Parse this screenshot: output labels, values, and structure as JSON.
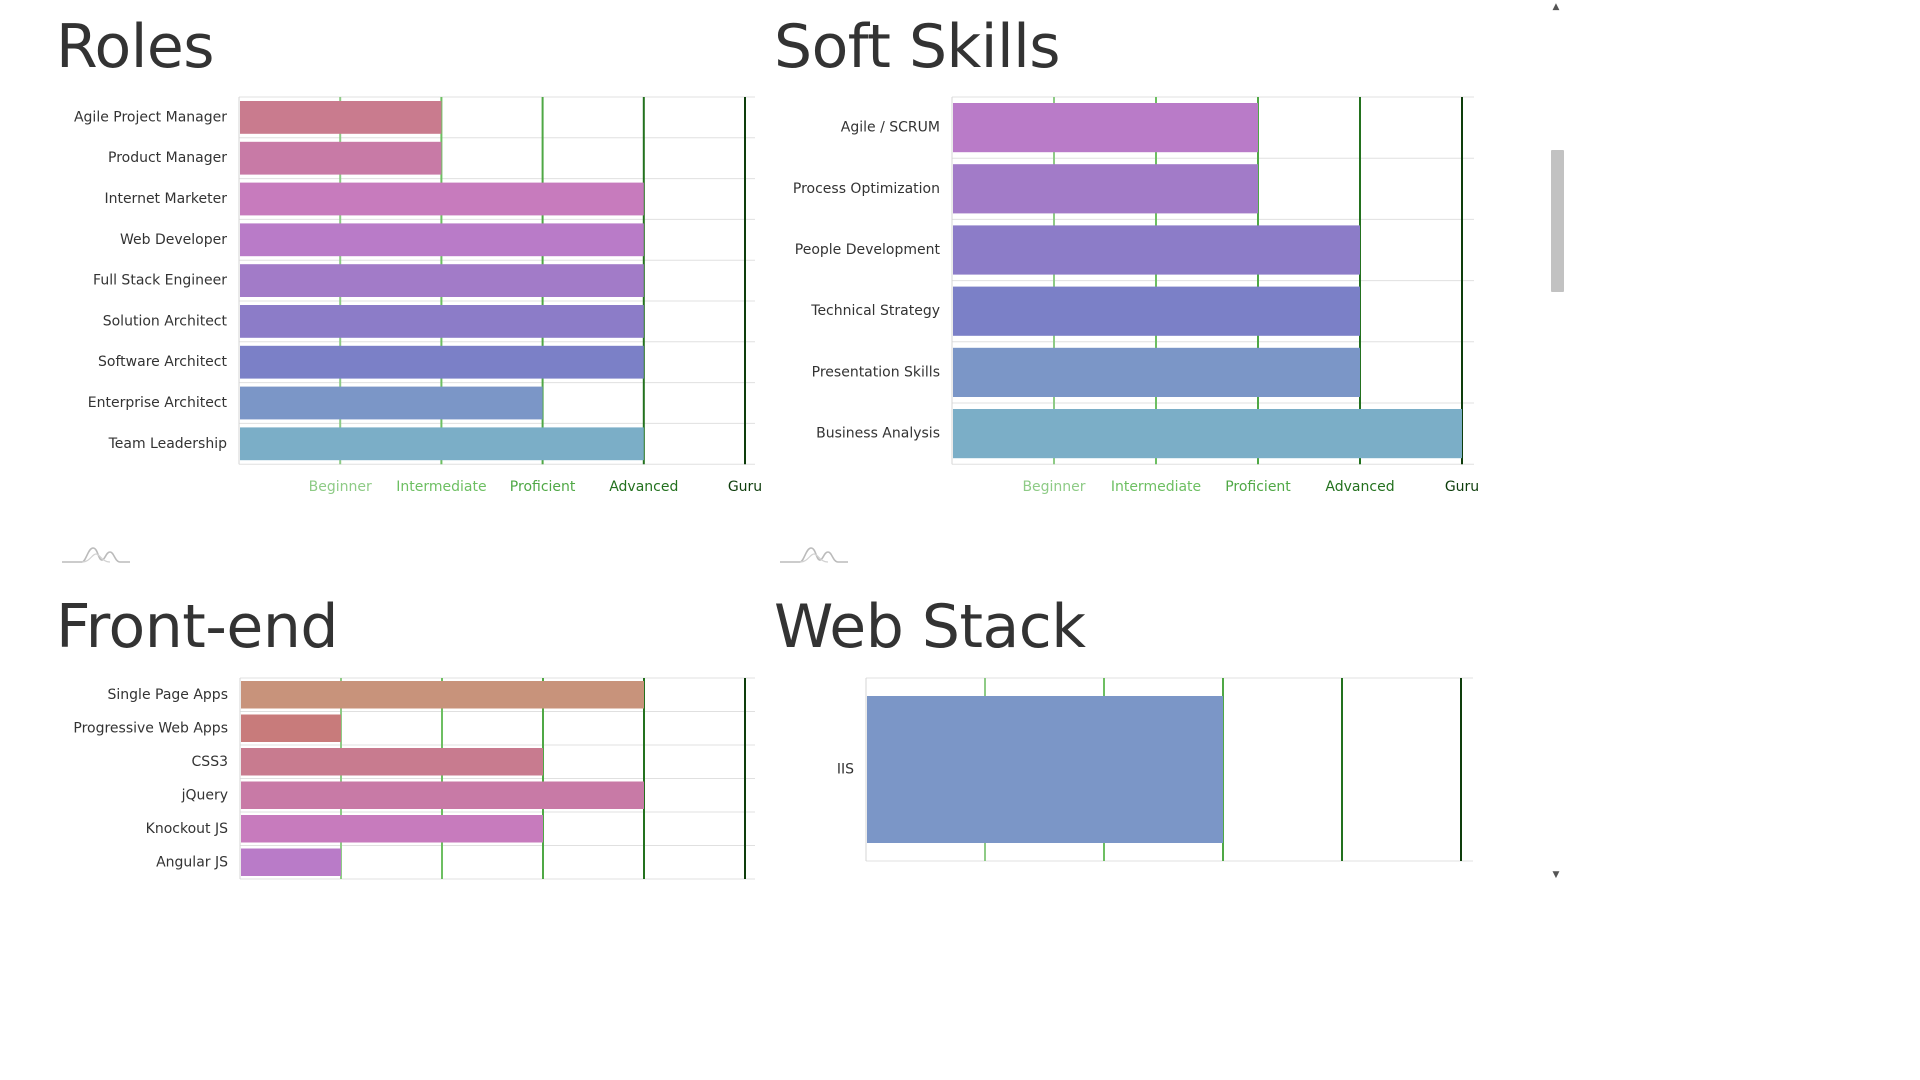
{
  "sections": {
    "roles": {
      "title": "Roles"
    },
    "soft_skills": {
      "title": "Soft Skills"
    },
    "front_end": {
      "title": "Front-end"
    },
    "web_stack": {
      "title": "Web Stack"
    }
  },
  "level_colors": {
    "Beginner": "#8ecb86",
    "Intermediate": "#6dbf62",
    "Proficient": "#4fa845",
    "Advanced": "#23711e",
    "Guru": "#0e3d0c"
  },
  "chart_data": [
    {
      "id": "roles",
      "type": "bar",
      "orientation": "horizontal",
      "title": "Roles",
      "categories": [
        "Agile Project Manager",
        "Product Manager",
        "Internet Marketer",
        "Web Developer",
        "Full Stack Engineer",
        "Solution Architect",
        "Software Architect",
        "Enterprise Architect",
        "Team Leadership"
      ],
      "values": [
        2,
        2,
        4,
        4,
        4,
        4,
        4,
        3,
        4
      ],
      "colors": [
        "#c97b8e",
        "#c87aa6",
        "#c77bbd",
        "#b97bc8",
        "#a27bc8",
        "#8c7cc8",
        "#7b80c7",
        "#7b96c7",
        "#7baec7"
      ],
      "xlim": [
        0,
        5
      ],
      "xticks": [
        1,
        2,
        3,
        4,
        5
      ],
      "xtick_labels": [
        "Beginner",
        "Intermediate",
        "Proficient",
        "Advanced",
        "Guru"
      ],
      "grid": true
    },
    {
      "id": "soft_skills",
      "type": "bar",
      "orientation": "horizontal",
      "title": "Soft Skills",
      "categories": [
        "Agile / SCRUM",
        "Process Optimization",
        "People Development",
        "Technical Strategy",
        "Presentation Skills",
        "Business Analysis"
      ],
      "values": [
        3,
        3,
        4,
        4,
        4,
        5
      ],
      "colors": [
        "#b97bc8",
        "#a27bc8",
        "#8c7cc8",
        "#7b80c7",
        "#7b96c7",
        "#7baec7"
      ],
      "xlim": [
        0,
        5
      ],
      "xticks": [
        1,
        2,
        3,
        4,
        5
      ],
      "xtick_labels": [
        "Beginner",
        "Intermediate",
        "Proficient",
        "Advanced",
        "Guru"
      ],
      "grid": true
    },
    {
      "id": "front_end",
      "type": "bar",
      "orientation": "horizontal",
      "title": "Front-end",
      "categories": [
        "Single Page Apps",
        "Progressive Web Apps",
        "CSS3",
        "jQuery",
        "Knockout JS",
        "Angular JS"
      ],
      "values": [
        4,
        1,
        3,
        4,
        3,
        1
      ],
      "colors": [
        "#c8937b",
        "#c87b7b",
        "#c87b8f",
        "#c87aa6",
        "#c77bbd",
        "#b97bc8"
      ],
      "xlim": [
        0,
        5
      ],
      "xticks": [
        1,
        2,
        3,
        4,
        5
      ],
      "grid": true
    },
    {
      "id": "web_stack",
      "type": "bar",
      "orientation": "horizontal",
      "title": "Web Stack",
      "categories": [
        "IIS"
      ],
      "values": [
        3
      ],
      "colors": [
        "#7b96c7"
      ],
      "xlim": [
        0,
        5
      ],
      "xticks": [
        1,
        2,
        3,
        4,
        5
      ],
      "grid": true
    }
  ]
}
